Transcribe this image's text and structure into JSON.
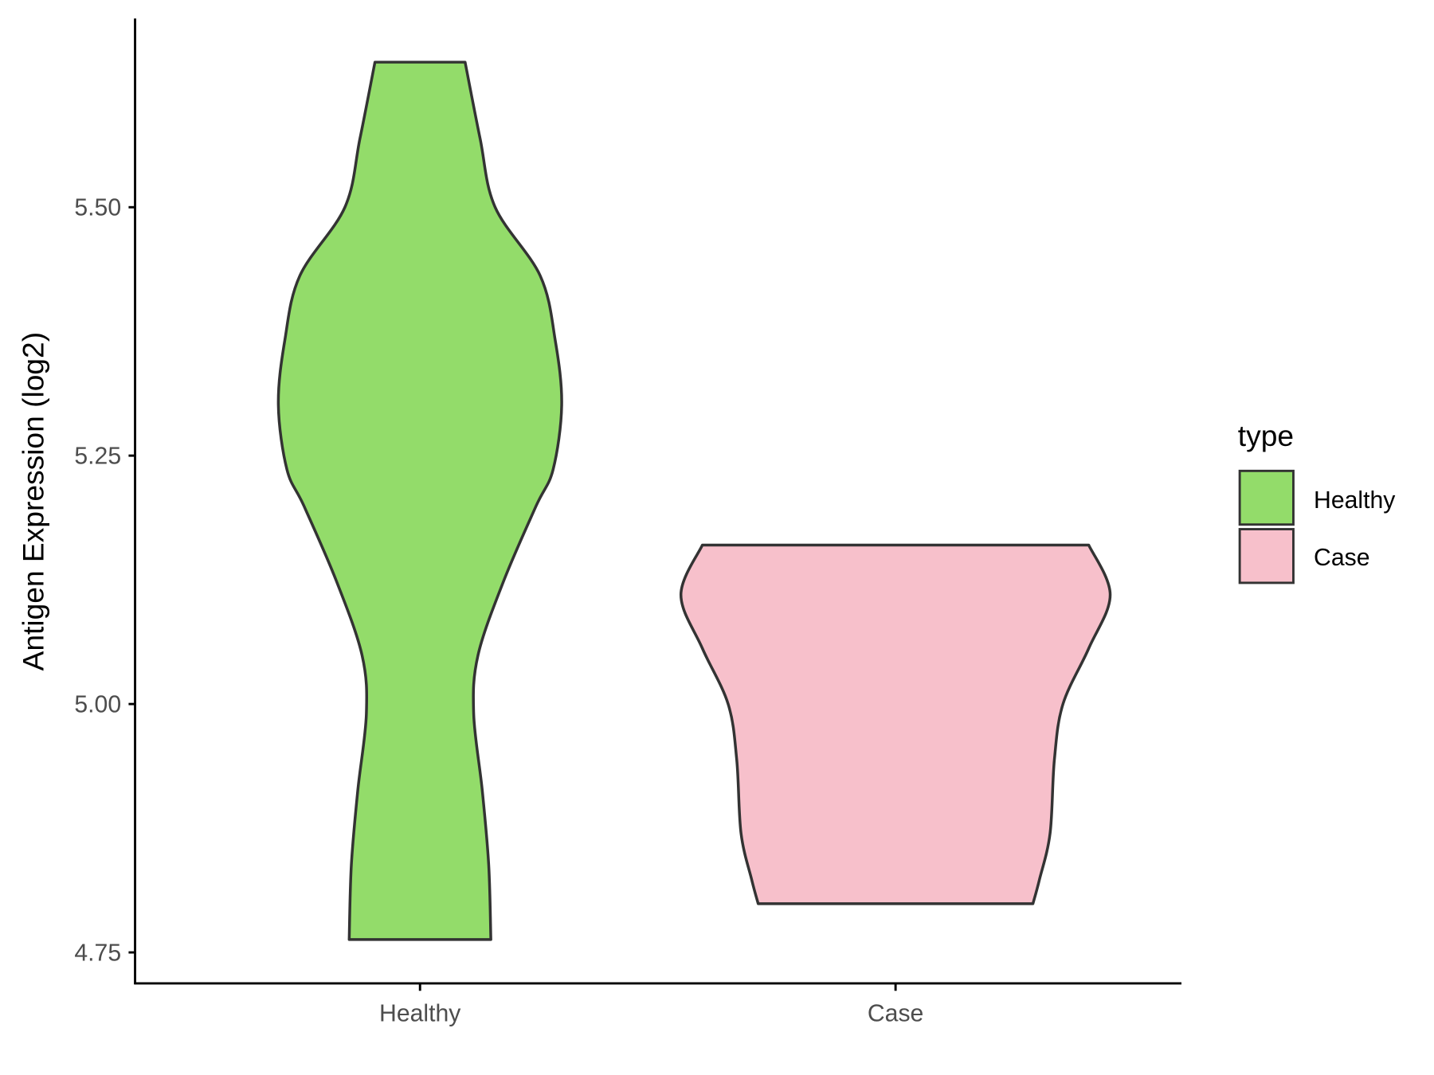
{
  "chart_data": {
    "type": "violin",
    "title": "",
    "xlabel": "",
    "ylabel": "Antigen Expression (log2)",
    "ylim": [
      4.694,
      5.665
    ],
    "yticks": [
      4.75,
      5.0,
      5.25,
      5.5
    ],
    "ytick_labels": [
      "4.75",
      "5.00",
      "5.25",
      "5.50"
    ],
    "categories": [
      "Healthy",
      "Case"
    ],
    "grid": false,
    "legend": {
      "title": "type",
      "position": "right",
      "entries": [
        "Healthy",
        "Case"
      ]
    },
    "series": [
      {
        "name": "Healthy",
        "color": "#93DC6A",
        "min": 4.763,
        "max": 5.646,
        "density_profile": {
          "y": [
            4.763,
            4.838,
            4.913,
            4.99,
            5.049,
            5.124,
            5.199,
            5.236,
            5.301,
            5.366,
            5.431,
            5.5,
            5.569,
            5.646
          ],
          "relative_width": [
            0.33,
            0.32,
            0.29,
            0.25,
            0.27,
            0.39,
            0.54,
            0.62,
            0.66,
            0.63,
            0.56,
            0.35,
            0.28,
            0.21
          ]
        }
      },
      {
        "name": "Case",
        "color": "#F7C0CB",
        "min": 4.799,
        "max": 5.16,
        "density_profile": {
          "y": [
            4.799,
            4.823,
            4.87,
            4.944,
            5.0,
            5.056,
            5.11,
            5.16
          ],
          "relative_width": [
            0.64,
            0.67,
            0.72,
            0.74,
            0.78,
            0.9,
            1.0,
            0.9
          ]
        }
      }
    ]
  }
}
